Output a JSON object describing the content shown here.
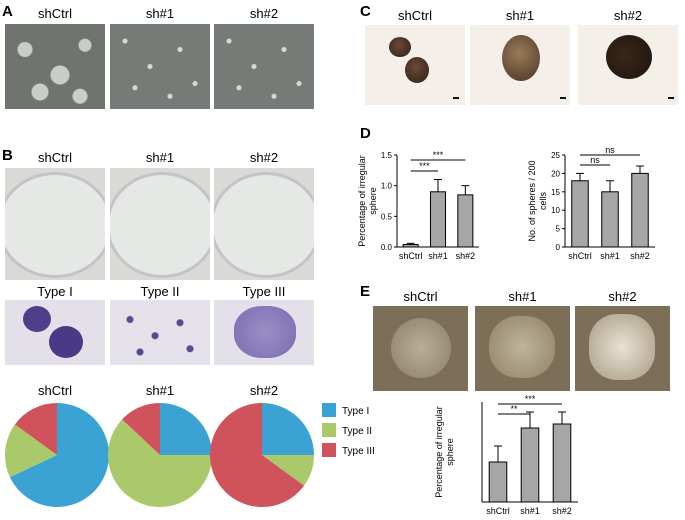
{
  "panels": {
    "A": "A",
    "B": "B",
    "C": "C",
    "D": "D",
    "E": "E"
  },
  "groups": [
    "shCtrl",
    "sh#1",
    "sh#2"
  ],
  "types": [
    "Type I",
    "Type II",
    "Type III"
  ],
  "colors": {
    "type1": "#3ba3d4",
    "type2": "#a9c96a",
    "type3": "#d0525a",
    "bar": "#a6a6a6"
  },
  "chart_data": [
    {
      "id": "D-left",
      "type": "bar",
      "categories": [
        "shCtrl",
        "sh#1",
        "sh#2"
      ],
      "values": [
        0.04,
        0.9,
        0.85
      ],
      "errors": [
        0.02,
        0.2,
        0.15
      ],
      "ylabel": "Percentage of irregular sphere",
      "ylim": [
        0,
        1.5
      ],
      "yticks": [
        "0.0",
        "0.5",
        "1.0",
        "1.5"
      ],
      "annotations": [
        "***",
        "***"
      ]
    },
    {
      "id": "D-right",
      "type": "bar",
      "categories": [
        "shCtrl",
        "sh#1",
        "sh#2"
      ],
      "values": [
        18,
        15,
        20
      ],
      "errors": [
        2,
        3,
        2
      ],
      "ylabel": "No. of spheres / 200 cells",
      "ylim": [
        0,
        25
      ],
      "yticks": [
        "0",
        "5",
        "10",
        "15",
        "20",
        "25"
      ],
      "annotations": [
        "ns",
        "ns"
      ]
    },
    {
      "id": "E-bottom",
      "type": "bar",
      "categories": [
        "shCtrl",
        "sh#1",
        "sh#2"
      ],
      "values": [
        0.2,
        0.37,
        0.39
      ],
      "errors": [
        0.08,
        0.08,
        0.06
      ],
      "ylabel": "Percentage of irregular sphere",
      "ylim": [
        0,
        0.5
      ],
      "annotations": [
        "**",
        "***"
      ]
    },
    {
      "id": "B-pies",
      "type": "pie",
      "categories": [
        "Type I",
        "Type II",
        "Type III"
      ],
      "series": [
        {
          "name": "shCtrl",
          "values": [
            0.68,
            0.17,
            0.15
          ]
        },
        {
          "name": "sh#1",
          "values": [
            0.25,
            0.62,
            0.13
          ]
        },
        {
          "name": "sh#2",
          "values": [
            0.25,
            0.1,
            0.65
          ]
        }
      ]
    }
  ]
}
